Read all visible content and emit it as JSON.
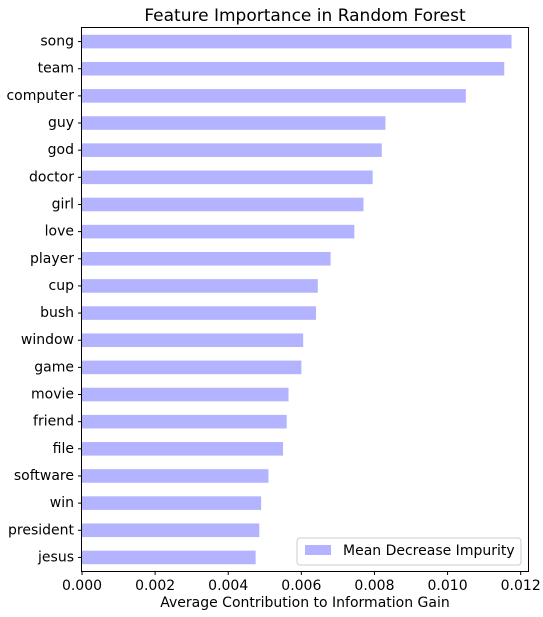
{
  "chart_data": {
    "type": "bar",
    "orientation": "horizontal",
    "title": "Feature Importance in Random Forest",
    "xlabel": "Average Contribution to Information Gain",
    "ylabel": "",
    "xlim": [
      0,
      0.0122
    ],
    "xticks": [
      "0.000",
      "0.002",
      "0.004",
      "0.006",
      "0.008",
      "0.010",
      "0.012"
    ],
    "xtick_values": [
      0,
      0.002,
      0.004,
      0.006,
      0.008,
      0.01,
      0.012
    ],
    "grid": false,
    "legend_position": "bottom-right",
    "bar_color": "#b3b3ff",
    "categories": [
      "song",
      "team",
      "computer",
      "guy",
      "god",
      "doctor",
      "girl",
      "love",
      "player",
      "cup",
      "bush",
      "window",
      "game",
      "movie",
      "friend",
      "file",
      "software",
      "win",
      "president",
      "jesus"
    ],
    "series": [
      {
        "name": "Mean Decrease Impurity",
        "values": [
          0.01175,
          0.01155,
          0.0105,
          0.0083,
          0.0082,
          0.00795,
          0.0077,
          0.00745,
          0.0068,
          0.00645,
          0.0064,
          0.00605,
          0.006,
          0.00565,
          0.0056,
          0.0055,
          0.0051,
          0.0049,
          0.00485,
          0.00475
        ]
      }
    ]
  }
}
